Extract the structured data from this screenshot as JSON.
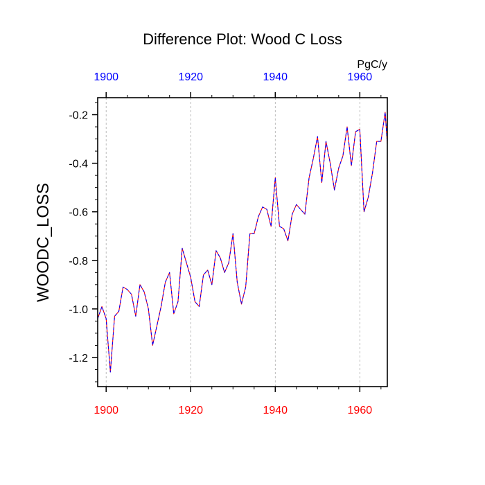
{
  "chart_data": {
    "type": "line",
    "title": "Difference Plot: Wood C Loss",
    "ylabel": "WOODC_LOSS",
    "units": "PgC/y",
    "xlim": [
      1898,
      1966.5
    ],
    "ylim": [
      -1.32,
      -0.13
    ],
    "xticks": [
      1900,
      1920,
      1940,
      1960
    ],
    "xtick_labels": [
      "1900",
      "1920",
      "1940",
      "1960"
    ],
    "yticks": [
      -0.2,
      -0.4,
      -0.6,
      -0.8,
      -1.0,
      -1.2
    ],
    "ytick_labels": [
      "-0.2",
      "-0.4",
      "-0.6",
      "-0.8",
      "-1.0",
      "-1.2"
    ],
    "grid_x": true,
    "colors": {
      "bottom_tick_labels": "#ff0000",
      "top_tick_labels": "#0000ff",
      "series_solid": "#ff0000",
      "series_dashed": "#0000ff",
      "grid": "#aaaaaa"
    },
    "series": [
      {
        "name": "WOODC_LOSS",
        "x": [
          1898,
          1899,
          1900,
          1901,
          1902,
          1903,
          1904,
          1905,
          1906,
          1907,
          1908,
          1909,
          1910,
          1911,
          1912,
          1913,
          1914,
          1915,
          1916,
          1917,
          1918,
          1919,
          1920,
          1921,
          1922,
          1923,
          1924,
          1925,
          1926,
          1927,
          1928,
          1929,
          1930,
          1931,
          1932,
          1933,
          1934,
          1935,
          1936,
          1937,
          1938,
          1939,
          1940,
          1941,
          1942,
          1943,
          1944,
          1945,
          1946,
          1947,
          1948,
          1949,
          1950,
          1951,
          1952,
          1953,
          1954,
          1955,
          1956,
          1957,
          1958,
          1959,
          1960,
          1961,
          1962,
          1963,
          1964,
          1965,
          1966,
          1966.5
        ],
        "values": [
          -1.04,
          -0.99,
          -1.04,
          -1.26,
          -1.03,
          -1.01,
          -0.91,
          -0.92,
          -0.94,
          -1.03,
          -0.9,
          -0.93,
          -1.0,
          -1.15,
          -1.07,
          -0.99,
          -0.89,
          -0.85,
          -1.02,
          -0.97,
          -0.75,
          -0.81,
          -0.87,
          -0.97,
          -0.99,
          -0.86,
          -0.84,
          -0.9,
          -0.76,
          -0.79,
          -0.85,
          -0.81,
          -0.69,
          -0.89,
          -0.98,
          -0.91,
          -0.69,
          -0.69,
          -0.62,
          -0.58,
          -0.59,
          -0.66,
          -0.46,
          -0.66,
          -0.67,
          -0.72,
          -0.61,
          -0.57,
          -0.59,
          -0.61,
          -0.46,
          -0.38,
          -0.29,
          -0.48,
          -0.31,
          -0.4,
          -0.51,
          -0.42,
          -0.37,
          -0.25,
          -0.41,
          -0.27,
          -0.26,
          -0.6,
          -0.54,
          -0.44,
          -0.31,
          -0.31,
          -0.19,
          -0.32
        ]
      }
    ]
  }
}
